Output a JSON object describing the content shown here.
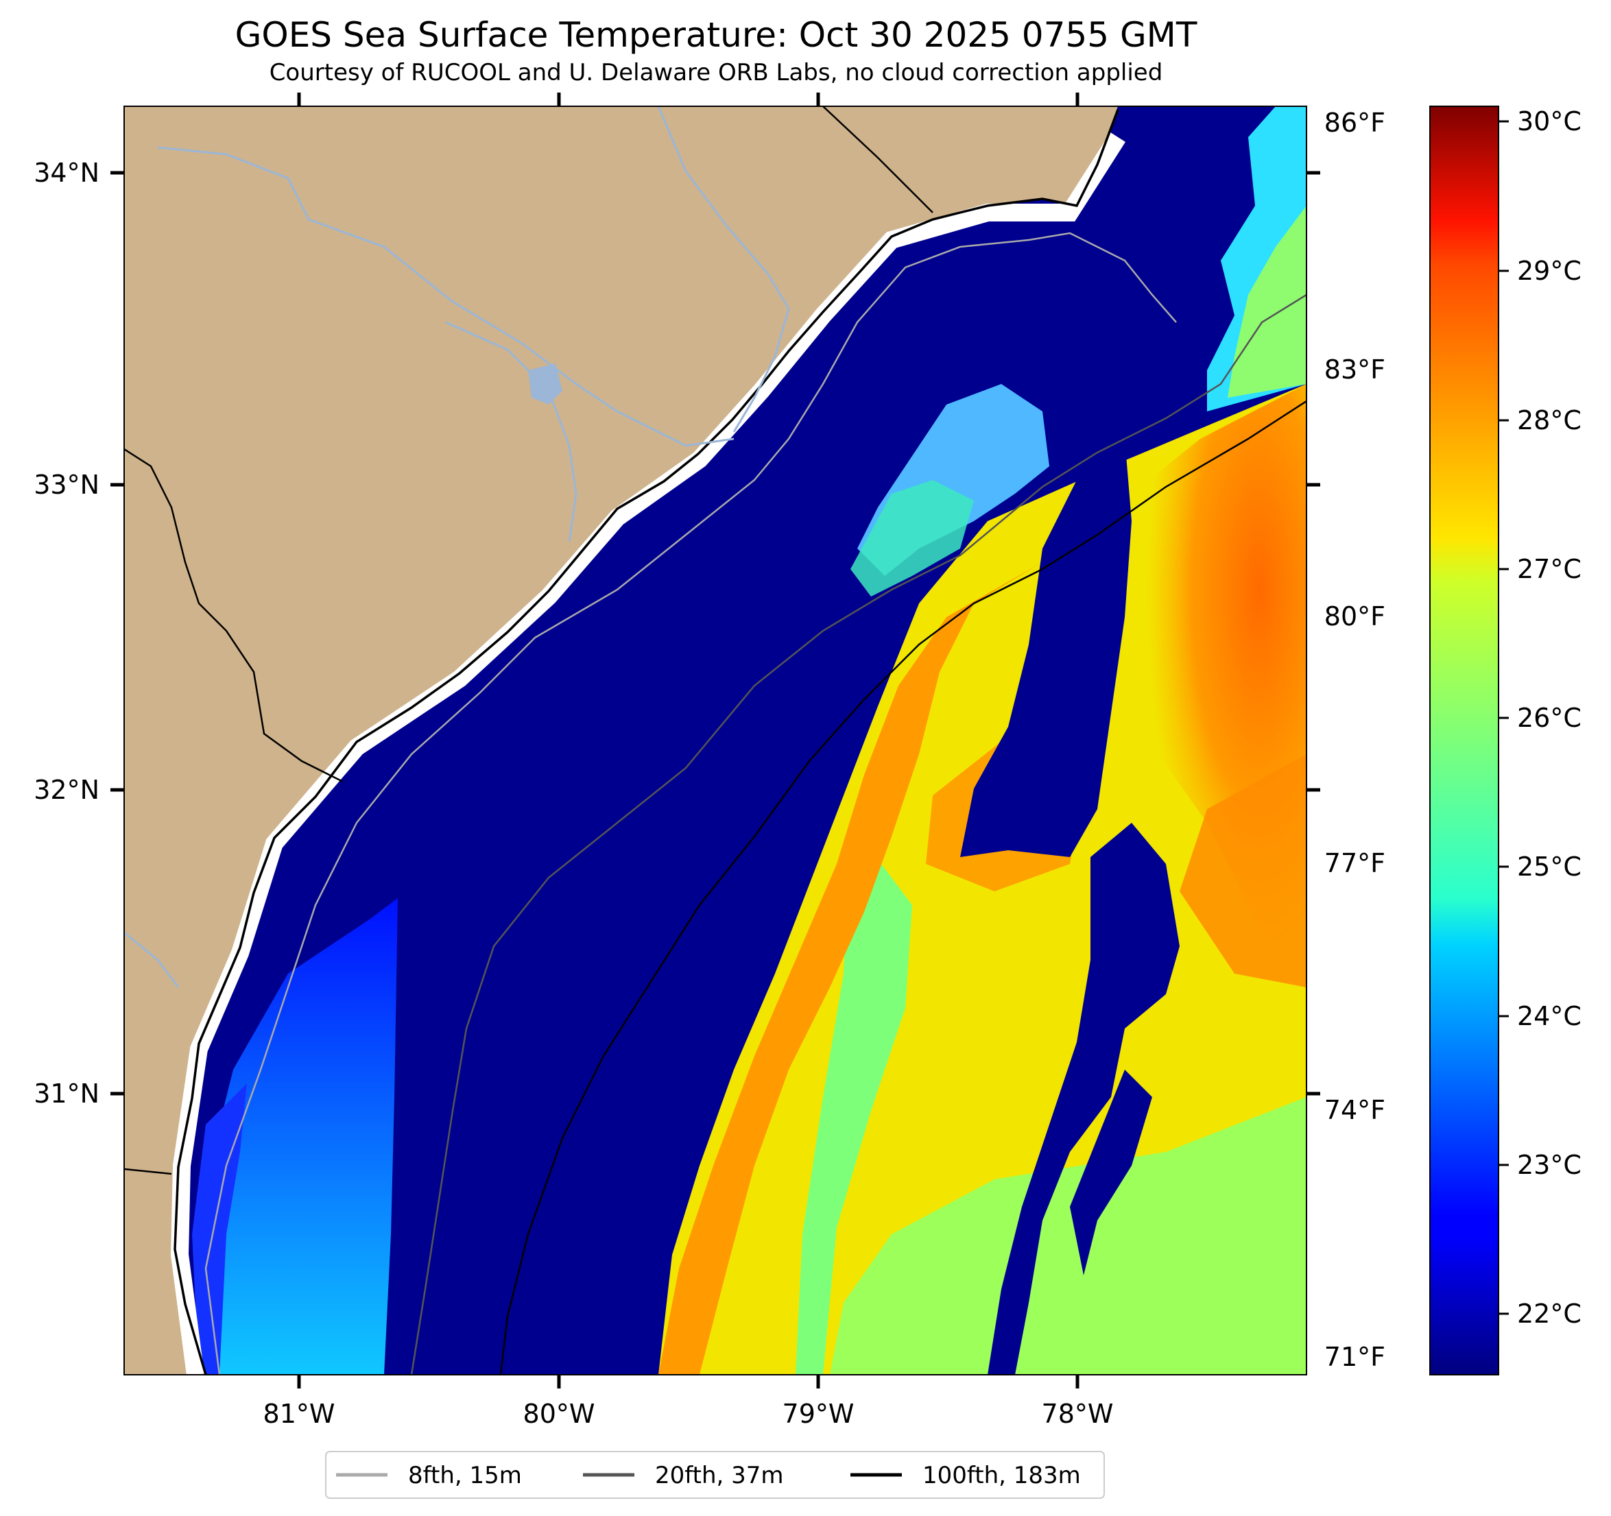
{
  "title": "GOES Sea Surface Temperature: Oct 30 2025 0755 GMT",
  "subtitle": "Courtesy of RUCOOL and U. Delaware ORB Labs, no cloud correction applied",
  "map": {
    "lat_labels": [
      "34°N",
      "33°N",
      "32°N",
      "31°N"
    ],
    "lon_labels": [
      "81°W",
      "80°W",
      "79°W",
      "78°W"
    ],
    "colors": {
      "land": "#cfb38c",
      "cold_water": "#00008f",
      "river": "#9bb6d6",
      "coast": "#000000",
      "no_data": "#ffffff"
    }
  },
  "fahrenheit_scale": {
    "labels": [
      "86°F",
      "83°F",
      "80°F",
      "77°F",
      "74°F",
      "71°F"
    ]
  },
  "colorbar": {
    "labels": [
      "30°C",
      "29°C",
      "28°C",
      "27°C",
      "26°C",
      "25°C",
      "24°C",
      "23°C",
      "22°C"
    ],
    "colormap": "jet"
  },
  "legend": {
    "items": [
      {
        "label": "8fth, 15m",
        "color": "#aaaaaa"
      },
      {
        "label": "20fth, 37m",
        "color": "#555555"
      },
      {
        "label": "100fth, 183m",
        "color": "#000000"
      }
    ]
  }
}
